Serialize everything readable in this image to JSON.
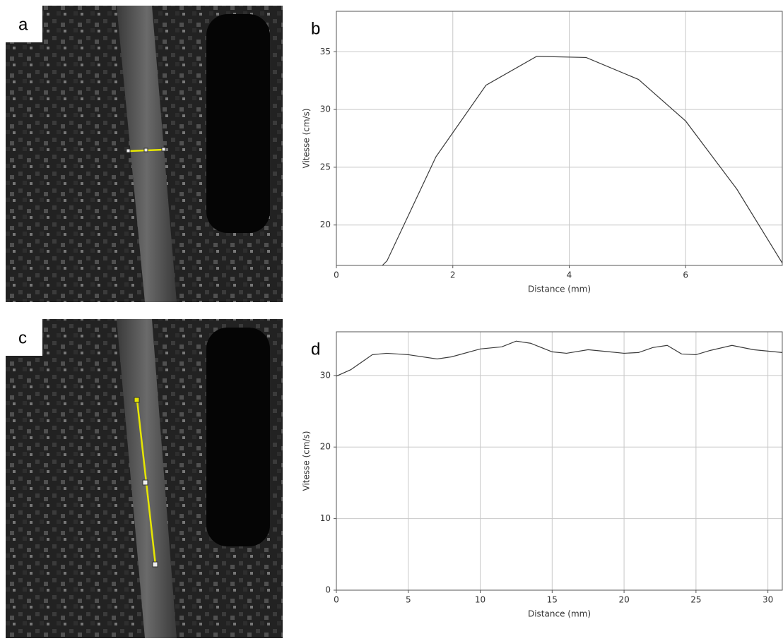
{
  "panels": [
    "a",
    "b",
    "c",
    "d"
  ],
  "chart_data": [
    {
      "type": "line",
      "xlabel": "Distance (mm)",
      "ylabel": "Vitesse (cm/s)",
      "color": "#3a3a3a",
      "grid": true,
      "x": [
        0.79,
        0.87,
        1.71,
        2.57,
        3.44,
        4.29,
        5.19,
        6.0,
        6.88,
        7.66
      ],
      "values": [
        16.5,
        16.9,
        25.9,
        32.1,
        34.6,
        34.5,
        32.6,
        29.0,
        23.1,
        16.7
      ],
      "xlim": [
        0,
        7.66
      ],
      "ylim": [
        16.5,
        38.5
      ],
      "xticks": [
        0,
        2,
        4,
        6
      ],
      "yticks": [
        20,
        25,
        30,
        35
      ]
    },
    {
      "type": "line",
      "xlabel": "Distance (mm)",
      "ylabel": "Vitesse (cm/s)",
      "color": "#3a3a3a",
      "grid": true,
      "x": [
        0,
        1,
        2.5,
        3.5,
        5,
        7,
        8,
        10,
        11.5,
        12.5,
        13.5,
        15,
        16,
        17.5,
        19,
        20,
        21,
        22,
        23,
        24,
        25,
        26,
        27.5,
        29,
        31
      ],
      "values": [
        29.9,
        30.8,
        32.9,
        33.1,
        32.9,
        32.3,
        32.6,
        33.7,
        34.0,
        34.8,
        34.5,
        33.3,
        33.1,
        33.6,
        33.3,
        33.1,
        33.2,
        33.9,
        34.2,
        33.0,
        32.9,
        33.5,
        34.2,
        33.6,
        33.2
      ],
      "xlim": [
        0,
        31
      ],
      "ylim": [
        0,
        36.1
      ],
      "xticks": [
        0,
        5,
        10,
        15,
        20,
        25,
        30
      ],
      "yticks": [
        0,
        10,
        20,
        30
      ]
    }
  ]
}
